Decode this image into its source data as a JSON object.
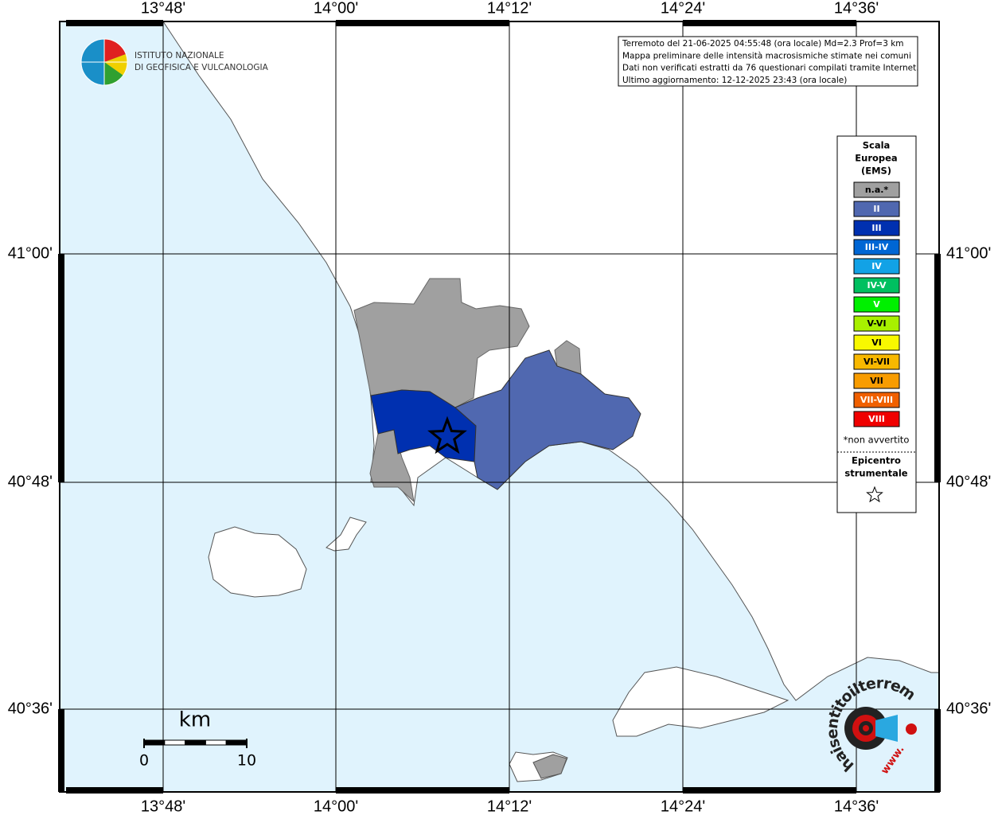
{
  "map": {
    "lon_labels": [
      "13°48'",
      "14°00'",
      "14°12'",
      "14°24'",
      "14°36'"
    ],
    "lat_labels": [
      "41°00'",
      "40°48'",
      "40°36'"
    ],
    "info": [
      "Terremoto del 21-06-2025 04:55:48 (ora locale) Md=2.3 Prof=3 km",
      "Mappa preliminare delle intensità macrosismiche stimate nei comuni",
      "Dati non verificati estratti da 76 questionari compilati tramite Internet.",
      "Ultimo aggiornamento: 12-12-2025 23:43 (ora locale)"
    ],
    "logo": [
      "ISTITUTO NAZIONALE",
      "DI GEOFISICA E VULCANOLOGIA"
    ],
    "legend": {
      "title": [
        "Scala",
        "Europea",
        "(EMS)"
      ],
      "items": [
        {
          "label": "n.a.*",
          "color": "#a0a0a0"
        },
        {
          "label": "II",
          "color": "#5068b0"
        },
        {
          "label": "III",
          "color": "#0030b0"
        },
        {
          "label": "III-IV",
          "color": "#0066d4"
        },
        {
          "label": "IV",
          "color": "#12a2e6"
        },
        {
          "label": "IV-V",
          "color": "#00c060"
        },
        {
          "label": "V",
          "color": "#00f000"
        },
        {
          "label": "V-VI",
          "color": "#a8f000"
        },
        {
          "label": "VI",
          "color": "#f8f800"
        },
        {
          "label": "VI-VII",
          "color": "#f8b800"
        },
        {
          "label": "VII",
          "color": "#f89c00"
        },
        {
          "label": "VII-VIII",
          "color": "#f06000"
        },
        {
          "label": "VIII",
          "color": "#f00000"
        }
      ],
      "note": "*non avvertito",
      "epicenter": [
        "Epicentro",
        "strumentale"
      ]
    },
    "scale": {
      "unit": "km",
      "ticks": [
        "0",
        "10"
      ]
    },
    "watermark": {
      "site": "haisentitoilterremoto.it",
      "prefix": "www."
    }
  }
}
